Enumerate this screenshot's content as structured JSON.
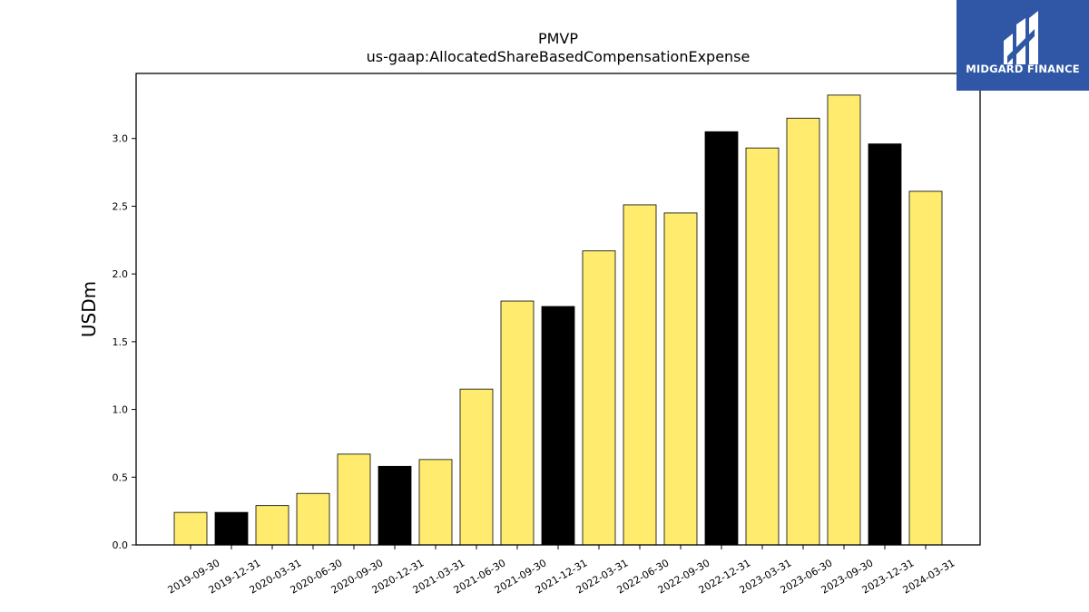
{
  "brand": {
    "name": "MIDGARD FINANCE",
    "bg_color": "#2f57a6"
  },
  "chart_data": {
    "type": "bar",
    "title": "PMVP",
    "subtitle": "us-gaap:AllocatedShareBasedCompensationExpense",
    "ylabel": "USDm",
    "xlabel": "",
    "ylim": [
      0,
      3.48
    ],
    "yticks": [
      "0.0",
      "0.5",
      "1.0",
      "1.5",
      "2.0",
      "2.5",
      "3.0"
    ],
    "grid": false,
    "colors": {
      "quarter": "#ffec6e",
      "year_end": "#000000",
      "edge": "#000000"
    },
    "categories": [
      "2019-09-30",
      "2019-12-31",
      "2020-03-31",
      "2020-06-30",
      "2020-09-30",
      "2020-12-31",
      "2021-03-31",
      "2021-06-30",
      "2021-09-30",
      "2021-12-31",
      "2022-03-31",
      "2022-06-30",
      "2022-09-30",
      "2022-12-31",
      "2023-03-31",
      "2023-06-30",
      "2023-09-30",
      "2023-12-31",
      "2024-03-31"
    ],
    "values": [
      0.24,
      0.24,
      0.29,
      0.38,
      0.67,
      0.58,
      0.63,
      1.15,
      1.8,
      1.76,
      2.17,
      2.51,
      2.45,
      3.05,
      2.93,
      3.15,
      3.32,
      2.96,
      2.61
    ],
    "highlight": [
      false,
      true,
      false,
      false,
      false,
      true,
      false,
      false,
      false,
      true,
      false,
      false,
      false,
      true,
      false,
      false,
      false,
      true,
      false
    ]
  }
}
